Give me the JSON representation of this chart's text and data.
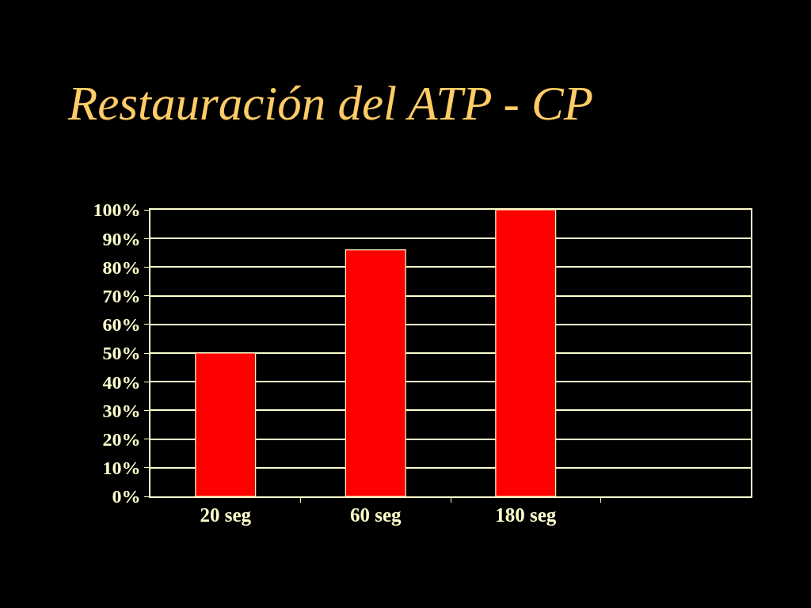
{
  "chart_data": {
    "type": "bar",
    "title": "Restauración del ATP - CP",
    "categories": [
      "20 seg",
      "60 seg",
      "180 seg",
      null
    ],
    "values": [
      50,
      86,
      100,
      null
    ],
    "color": "#ff0000",
    "ylim": [
      0,
      100
    ],
    "yticks": [
      {
        "value": 0,
        "label": "0%"
      },
      {
        "value": 10,
        "label": "10%"
      },
      {
        "value": 20,
        "label": "20%"
      },
      {
        "value": 30,
        "label": "30%"
      },
      {
        "value": 40,
        "label": "40%"
      },
      {
        "value": 50,
        "label": "50%"
      },
      {
        "value": 60,
        "label": "60%"
      },
      {
        "value": 70,
        "label": "70%"
      },
      {
        "value": 80,
        "label": "80%"
      },
      {
        "value": 90,
        "label": "90%"
      },
      {
        "value": 100,
        "label": "100%"
      }
    ],
    "grid": "y"
  }
}
